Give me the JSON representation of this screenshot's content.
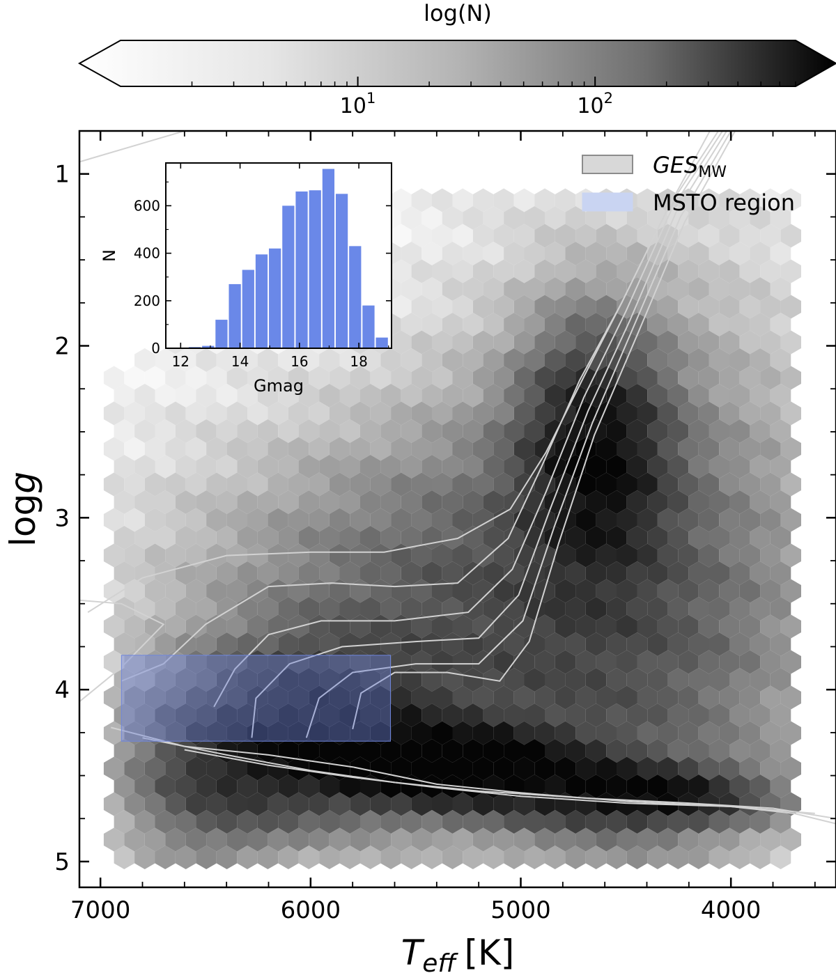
{
  "chart_data": {
    "type": "heatmap",
    "subtype": "hexbin",
    "xlabel": "T",
    "xlabel_sub": "eff",
    "xlabel_unit": "[K]",
    "ylabel": "log",
    "ylabel_italic": "g",
    "xlim": [
      7100,
      3500
    ],
    "ylim": [
      5.15,
      0.75
    ],
    "x_ticks": [
      7000,
      6000,
      5000,
      4000
    ],
    "x_tick_labels": [
      "7000",
      "6000",
      "5000",
      "4000"
    ],
    "y_ticks": [
      1,
      2,
      3,
      4,
      5
    ],
    "y_tick_labels": [
      "1",
      "2",
      "3",
      "4",
      "5"
    ],
    "grid": false,
    "colormap": "Greys",
    "colorbar": {
      "label": "log(N)",
      "scale": "log",
      "range": [
        1,
        700
      ],
      "ticks": [
        10,
        100
      ],
      "tick_bases": [
        "10",
        "10"
      ],
      "tick_exponents": [
        "1",
        "2"
      ],
      "extend": "min",
      "placement": "top"
    },
    "density_components": [
      {
        "teff": 5300,
        "logg": 4.45,
        "sigma_teff": 420,
        "sigma_logg": 0.16,
        "weight": 4.2
      },
      {
        "teff": 4400,
        "logg": 4.62,
        "sigma_teff": 380,
        "sigma_logg": 0.12,
        "weight": 3.3
      },
      {
        "teff": 6000,
        "logg": 4.25,
        "sigma_teff": 380,
        "sigma_logg": 0.32,
        "weight": 3.2
      },
      {
        "teff": 6500,
        "logg": 4.55,
        "sigma_teff": 280,
        "sigma_logg": 0.35,
        "weight": 1.6
      },
      {
        "teff": 4650,
        "logg": 2.6,
        "sigma_teff": 220,
        "sigma_logg": 0.45,
        "weight": 3.3
      },
      {
        "teff": 4450,
        "logg": 3.5,
        "sigma_teff": 600,
        "sigma_logg": 1.2,
        "weight": 1.4
      },
      {
        "teff": 5400,
        "logg": 3.6,
        "sigma_teff": 800,
        "sigma_logg": 0.7,
        "weight": 1.6
      }
    ],
    "mask_bounds": {
      "teff": [
        3700,
        6950
      ],
      "logg": [
        1.1,
        5.0
      ]
    },
    "legend": {
      "placement": "top-right",
      "entries": [
        {
          "label_main": "GES",
          "label_sub": "MW",
          "color": "#d8d8d8",
          "edge": "#8c8c8c"
        },
        {
          "label_main": "MSTO region",
          "label_sub": "",
          "color": "#c9d4f2",
          "edge": "#c9d4f2"
        }
      ]
    },
    "msto_region": {
      "teff": [
        5620,
        6900
      ],
      "logg": [
        3.8,
        4.3
      ],
      "color": "#6f86dd"
    },
    "isochrones": {
      "color": "#d2d2d2",
      "tracks": [
        [
          [
            7060,
            3.55
          ],
          [
            6800,
            3.35
          ],
          [
            6400,
            3.22
          ],
          [
            6000,
            3.2
          ],
          [
            5650,
            3.2
          ],
          [
            5300,
            3.12
          ],
          [
            5050,
            2.95
          ],
          [
            4880,
            2.62
          ],
          [
            4700,
            2.18
          ],
          [
            4520,
            1.75
          ],
          [
            4300,
            1.2
          ],
          [
            4100,
            0.75
          ]
        ],
        [
          [
            6900,
            3.95
          ],
          [
            6700,
            3.85
          ],
          [
            6500,
            3.62
          ],
          [
            6200,
            3.4
          ],
          [
            5900,
            3.38
          ],
          [
            5600,
            3.4
          ],
          [
            5300,
            3.38
          ],
          [
            5060,
            3.12
          ],
          [
            4900,
            2.7
          ],
          [
            4720,
            2.2
          ],
          [
            4520,
            1.75
          ],
          [
            4300,
            1.2
          ],
          [
            4060,
            0.75
          ]
        ],
        [
          [
            6460,
            4.1
          ],
          [
            6360,
            3.88
          ],
          [
            6200,
            3.68
          ],
          [
            5950,
            3.6
          ],
          [
            5600,
            3.6
          ],
          [
            5250,
            3.55
          ],
          [
            5040,
            3.3
          ],
          [
            4880,
            2.85
          ],
          [
            4700,
            2.3
          ],
          [
            4500,
            1.8
          ],
          [
            4280,
            1.2
          ],
          [
            4040,
            0.75
          ]
        ],
        [
          [
            6280,
            4.28
          ],
          [
            6260,
            4.05
          ],
          [
            6100,
            3.85
          ],
          [
            5850,
            3.75
          ],
          [
            5500,
            3.72
          ],
          [
            5200,
            3.7
          ],
          [
            5010,
            3.45
          ],
          [
            4860,
            2.95
          ],
          [
            4680,
            2.38
          ],
          [
            4480,
            1.85
          ],
          [
            4260,
            1.22
          ],
          [
            4020,
            0.75
          ]
        ],
        [
          [
            6020,
            4.28
          ],
          [
            5960,
            4.05
          ],
          [
            5800,
            3.9
          ],
          [
            5500,
            3.85
          ],
          [
            5200,
            3.85
          ],
          [
            4990,
            3.6
          ],
          [
            4840,
            3.05
          ],
          [
            4660,
            2.45
          ],
          [
            4460,
            1.88
          ],
          [
            4240,
            1.25
          ],
          [
            4000,
            0.75
          ]
        ],
        [
          [
            5800,
            4.23
          ],
          [
            5760,
            4.02
          ],
          [
            5600,
            3.9
          ],
          [
            5350,
            3.9
          ],
          [
            5100,
            3.95
          ],
          [
            4960,
            3.72
          ],
          [
            4820,
            3.15
          ],
          [
            4650,
            2.52
          ],
          [
            4440,
            1.92
          ],
          [
            4220,
            1.28
          ],
          [
            3980,
            0.75
          ]
        ],
        [
          [
            6950,
            4.22
          ],
          [
            6600,
            4.33
          ],
          [
            6200,
            4.38
          ],
          [
            5800,
            4.45
          ],
          [
            5400,
            4.55
          ],
          [
            5000,
            4.6
          ],
          [
            4500,
            4.65
          ],
          [
            4000,
            4.68
          ],
          [
            3700,
            4.72
          ],
          [
            3500,
            4.78
          ]
        ],
        [
          [
            6800,
            4.28
          ],
          [
            6400,
            4.38
          ],
          [
            6000,
            4.47
          ],
          [
            5600,
            4.54
          ],
          [
            5200,
            4.59
          ],
          [
            4700,
            4.63
          ],
          [
            4200,
            4.66
          ],
          [
            3800,
            4.69
          ],
          [
            3500,
            4.75
          ]
        ],
        [
          [
            6600,
            4.35
          ],
          [
            6200,
            4.44
          ],
          [
            5800,
            4.51
          ],
          [
            5400,
            4.57
          ],
          [
            5000,
            4.62
          ],
          [
            4500,
            4.66
          ],
          [
            4000,
            4.68
          ],
          [
            3600,
            4.72
          ]
        ],
        [
          [
            7100,
            4.07
          ],
          [
            6900,
            3.87
          ],
          [
            6700,
            3.62
          ],
          [
            6900,
            3.5
          ],
          [
            7100,
            3.48
          ]
        ],
        [
          [
            7100,
            0.93
          ],
          [
            6600,
            0.75
          ]
        ]
      ]
    },
    "inset": {
      "type": "bar",
      "placement": "top-left",
      "color": "#6a88e8",
      "xlabel": "Gmag",
      "ylabel": "N",
      "xlim": [
        11.5,
        19.1
      ],
      "ylim": [
        0,
        780
      ],
      "x_ticks": [
        12,
        14,
        16,
        18
      ],
      "x_tick_labels": [
        "12",
        "14",
        "16",
        "18"
      ],
      "y_ticks": [
        0,
        200,
        400,
        600
      ],
      "y_tick_labels": [
        "0",
        "200",
        "400",
        "600"
      ],
      "bin_width": 0.45,
      "bin_centers": [
        12.475,
        12.925,
        13.375,
        13.825,
        14.275,
        14.725,
        15.175,
        15.625,
        16.075,
        16.525,
        16.975,
        17.425,
        17.875,
        18.325,
        18.775
      ],
      "values": [
        5,
        10,
        120,
        270,
        330,
        395,
        420,
        600,
        660,
        665,
        755,
        650,
        430,
        180,
        45
      ]
    }
  }
}
